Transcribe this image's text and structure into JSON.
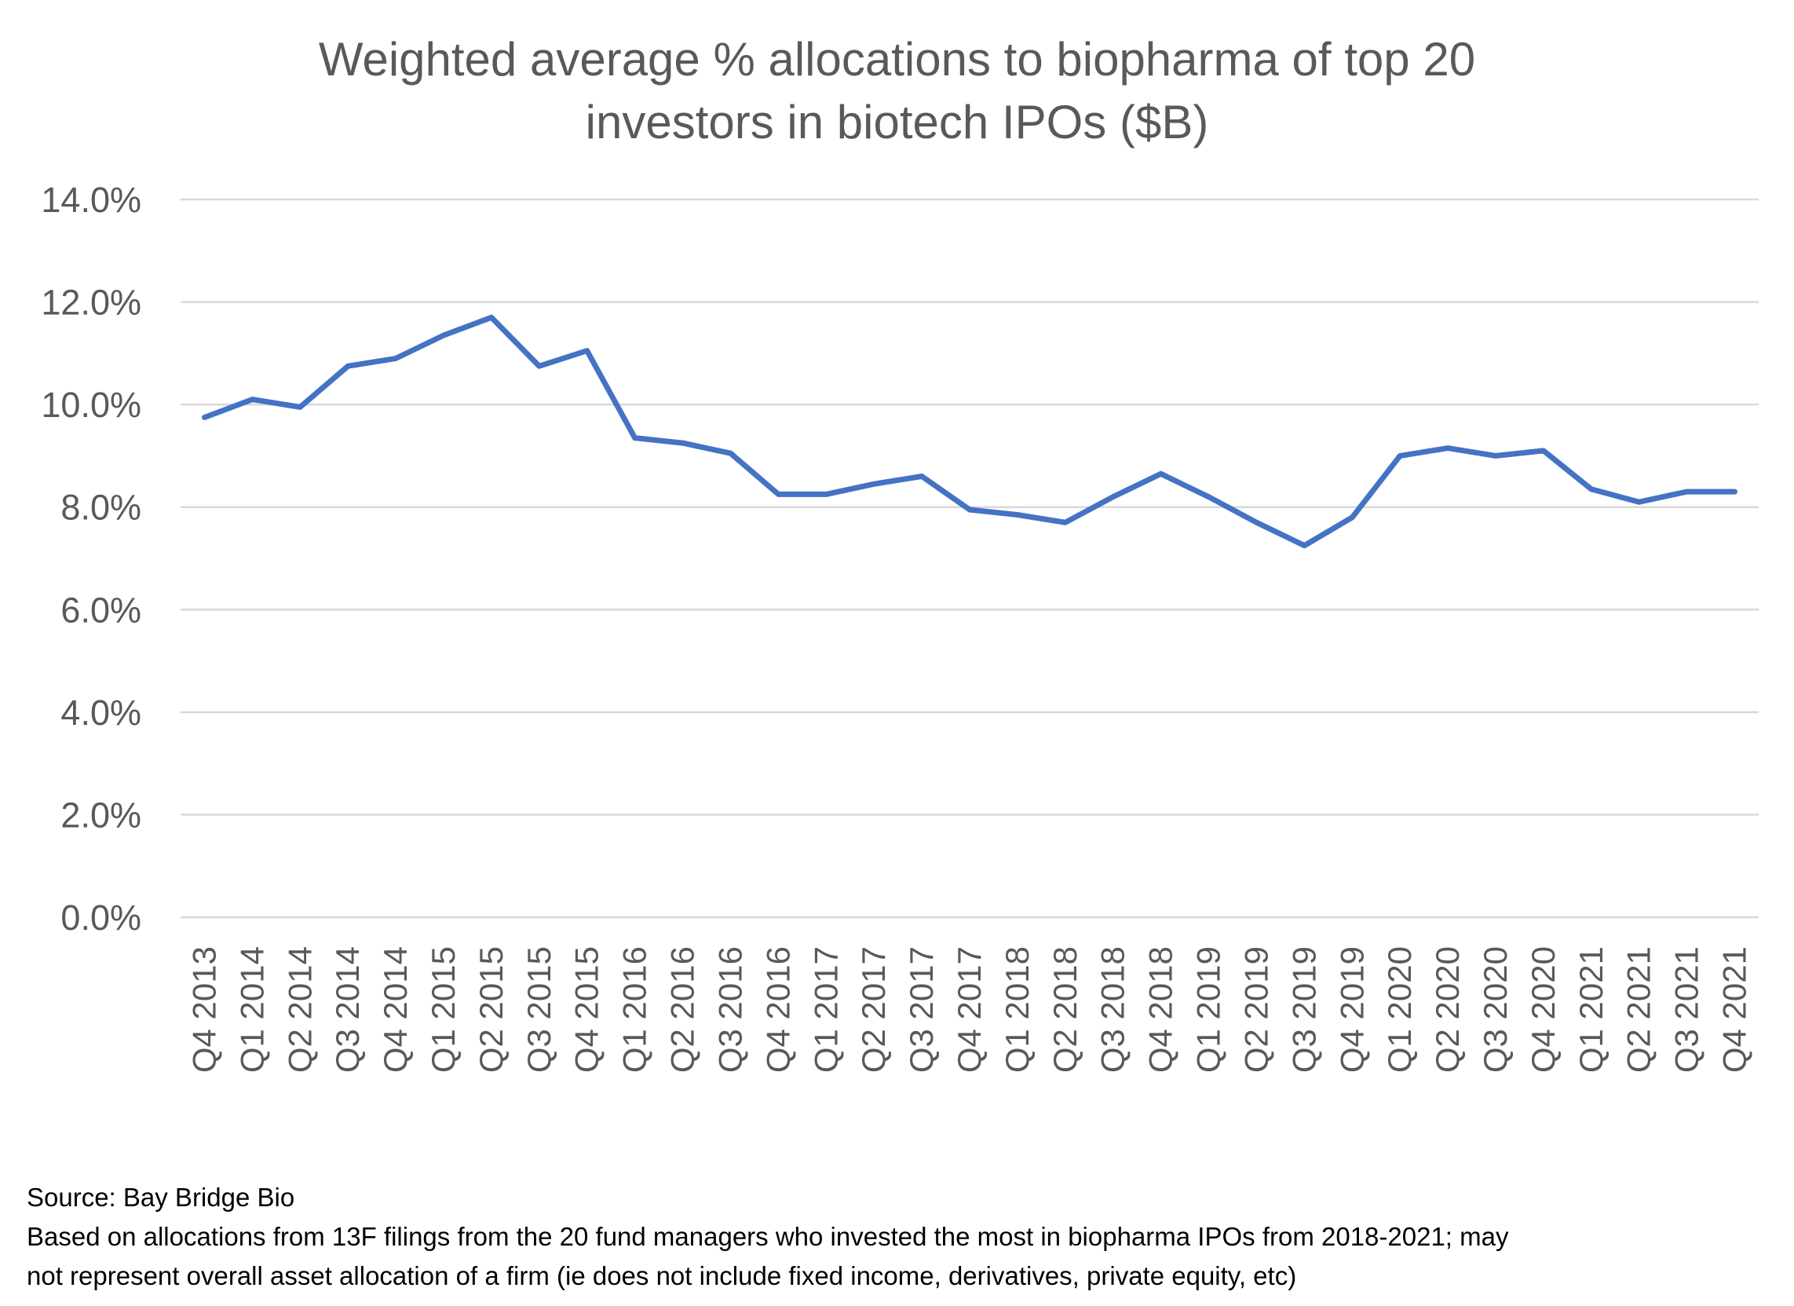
{
  "chart_data": {
    "type": "line",
    "title": "Weighted average % allocations to biopharma of top 20 investors in biotech IPOs ($B)",
    "title_lines": [
      "Weighted average % allocations to biopharma of top 20",
      "investors in biotech IPOs ($B)"
    ],
    "xlabel": "",
    "ylabel": "",
    "ylim": [
      0,
      14
    ],
    "y_ticks": [
      0,
      2,
      4,
      6,
      8,
      10,
      12,
      14
    ],
    "y_tick_labels": [
      "0.0%",
      "2.0%",
      "4.0%",
      "6.0%",
      "8.0%",
      "10.0%",
      "12.0%",
      "14.0%"
    ],
    "grid": "horizontal",
    "legend": "none",
    "categories": [
      "Q4 2013",
      "Q1 2014",
      "Q2 2014",
      "Q3 2014",
      "Q4 2014",
      "Q1 2015",
      "Q2 2015",
      "Q3 2015",
      "Q4 2015",
      "Q1 2016",
      "Q2 2016",
      "Q3 2016",
      "Q4 2016",
      "Q1 2017",
      "Q2 2017",
      "Q3 2017",
      "Q4 2017",
      "Q1 2018",
      "Q2 2018",
      "Q3 2018",
      "Q4 2018",
      "Q1 2019",
      "Q2 2019",
      "Q3 2019",
      "Q4 2019",
      "Q1 2020",
      "Q2 2020",
      "Q3 2020",
      "Q4 2020",
      "Q1 2021",
      "Q2 2021",
      "Q3 2021",
      "Q4 2021"
    ],
    "series": [
      {
        "values": [
          9.75,
          10.1,
          9.95,
          10.75,
          10.9,
          11.35,
          11.7,
          10.75,
          11.05,
          9.35,
          9.25,
          9.05,
          8.25,
          8.25,
          8.45,
          8.6,
          7.95,
          7.85,
          7.7,
          8.2,
          8.65,
          8.2,
          7.7,
          7.25,
          7.8,
          9.0,
          9.15,
          9.0,
          9.1,
          8.35,
          8.1,
          8.3,
          8.3
        ],
        "color": "#4472C4"
      }
    ],
    "colors": {
      "line": "#4472C4",
      "grid": "#D9D9D9",
      "axis_text": "#595959"
    }
  },
  "footnotes": {
    "source": "Source: Bay Bridge Bio",
    "note_line1": "Based on allocations from 13F filings from the 20 fund managers who invested the most in biopharma IPOs from 2018-2021; may",
    "note_line2": "not represent overall asset allocation of a firm (ie does not include fixed income, derivatives, private equity, etc)"
  }
}
